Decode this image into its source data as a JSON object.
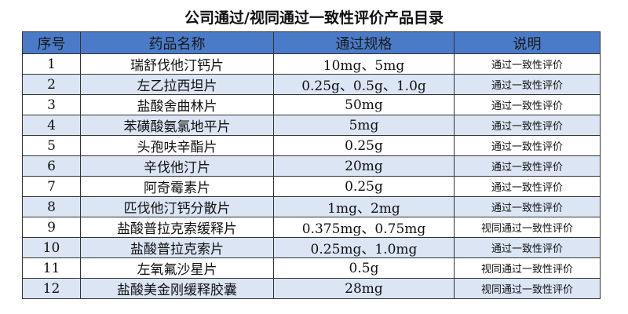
{
  "title": "公司通过/视同通过一致性评价产品目录",
  "table": {
    "columns": [
      "序号",
      "药品名称",
      "通过规格",
      "说明"
    ],
    "rows": [
      [
        "1",
        "瑞舒伐他汀钙片",
        "10mg、5mg",
        "通过一致性评价"
      ],
      [
        "2",
        "左乙拉西坦片",
        "0.25g、0.5g、1.0g",
        "通过一致性评价"
      ],
      [
        "3",
        "盐酸舍曲林片",
        "50mg",
        "通过一致性评价"
      ],
      [
        "4",
        "苯磺酸氨氯地平片",
        "5mg",
        "通过一致性评价"
      ],
      [
        "5",
        "头孢呋辛酯片",
        "0.25g",
        "通过一致性评价"
      ],
      [
        "6",
        "辛伐他汀片",
        "20mg",
        "通过一致性评价"
      ],
      [
        "7",
        "阿奇霉素片",
        "0.25g",
        "通过一致性评价"
      ],
      [
        "8",
        "匹伐他汀钙分散片",
        "1mg、2mg",
        "通过一致性评价"
      ],
      [
        "9",
        "盐酸普拉克索缓释片",
        "0.375mg、0.75mg",
        "视同通过一致性评价"
      ],
      [
        "10",
        "盐酸普拉克索片",
        "0.25mg、1.0mg",
        "通过一致性评价"
      ],
      [
        "11",
        "左氧氟沙星片",
        "0.5g",
        "视同通过一致性评价"
      ],
      [
        "12",
        "盐酸美金刚缓释胶囊",
        "28mg",
        "视同通过一致性评价"
      ]
    ]
  }
}
